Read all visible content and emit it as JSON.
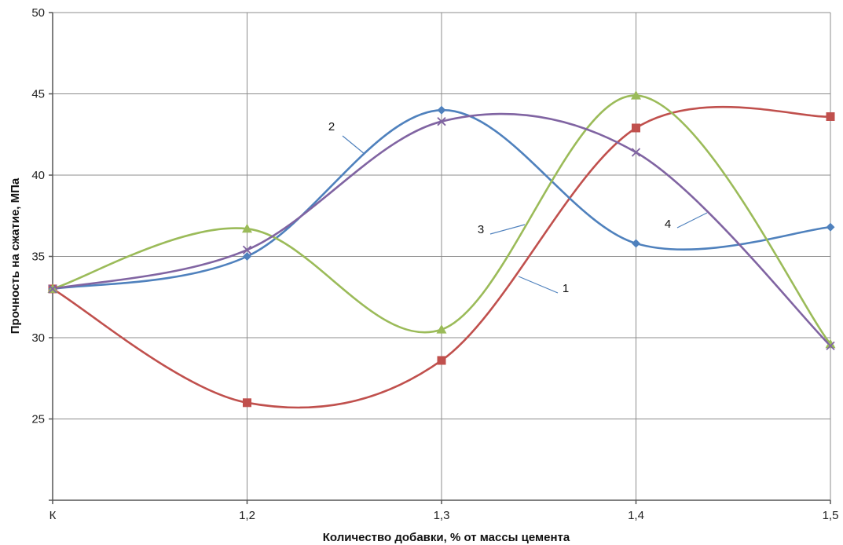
{
  "chart_data": {
    "type": "line",
    "smooth": true,
    "title": "",
    "xlabel": "Количество добавки, % от массы цемента",
    "ylabel": "Прочность на сжатие, МПа",
    "categories": [
      "К",
      "1,2",
      "1,3",
      "1,4",
      "1,5"
    ],
    "ylim": [
      20,
      50
    ],
    "yticks": [
      "",
      "25",
      "30",
      "35",
      "40",
      "45",
      "50"
    ],
    "grid": true,
    "legend": "none",
    "series": [
      {
        "name": "1",
        "color": "#c0504d",
        "marker": "square",
        "values": [
          33,
          26,
          28.6,
          42.9,
          43.6
        ]
      },
      {
        "name": "2",
        "color": "#4f81bd",
        "marker": "diamond",
        "values": [
          33,
          35,
          44,
          35.8,
          36.8
        ]
      },
      {
        "name": "3",
        "color": "#9bbb59",
        "marker": "triangle",
        "values": [
          33,
          36.7,
          30.5,
          44.9,
          29.6
        ]
      },
      {
        "name": "4",
        "color": "#8064a2",
        "marker": "x",
        "values": [
          33,
          35.4,
          43.3,
          41.4,
          29.5
        ]
      }
    ],
    "annotations": [
      {
        "text": "2",
        "series": "2"
      },
      {
        "text": "3",
        "series": "3"
      },
      {
        "text": "1",
        "series": "1"
      },
      {
        "text": "4",
        "series": "4"
      }
    ]
  }
}
